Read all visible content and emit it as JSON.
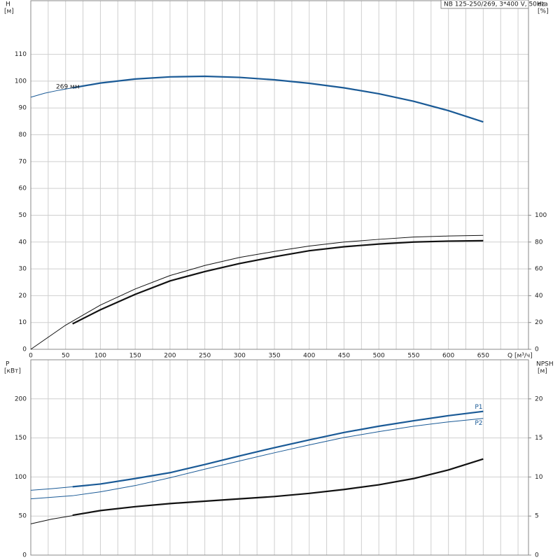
{
  "chart_data": [
    {
      "type": "line",
      "title": "NB 125-250/269, 3*400 V, 50Hz",
      "ylabel": "H",
      "yunit": "[м]",
      "y2label": "eta",
      "y2unit": "[%]",
      "xlabel": "Q [м³/ч]",
      "annotation": "269 мм",
      "xlim": [
        0,
        715
      ],
      "xticks": [
        0,
        50,
        100,
        150,
        200,
        250,
        300,
        350,
        400,
        450,
        500,
        550,
        600,
        650
      ],
      "x_minor_gridlines": [
        25,
        75,
        125,
        175,
        225,
        275,
        325,
        375,
        425,
        475,
        525,
        575,
        625,
        675,
        700
      ],
      "ylim": [
        0,
        130
      ],
      "yticks": [
        0,
        10,
        20,
        30,
        40,
        50,
        60,
        70,
        80,
        90,
        100,
        110
      ],
      "y2lim": [
        0,
        260
      ],
      "y2ticks": [
        0,
        20,
        40,
        60,
        80,
        100
      ],
      "grid": true,
      "series": [
        {
          "color": "#1a5a96",
          "width": "thin",
          "x": [
            0,
            20,
            40,
            60
          ],
          "values": [
            94,
            95.5,
            96.6,
            97.5
          ]
        },
        {
          "color": "#1a5a96",
          "width": "thick",
          "x": [
            60,
            100,
            150,
            200,
            250,
            300,
            350,
            400,
            450,
            500,
            550,
            600,
            650
          ],
          "values": [
            97.5,
            99.3,
            100.8,
            101.6,
            101.8,
            101.4,
            100.5,
            99.2,
            97.5,
            95.3,
            92.5,
            89,
            84.8
          ]
        },
        {
          "color": "#111111",
          "width": "thin",
          "axis": "y2",
          "x": [
            0,
            50,
            100,
            150,
            200,
            250,
            300,
            350,
            400,
            450,
            500,
            550,
            600,
            650
          ],
          "values": [
            0,
            18,
            33,
            45,
            55,
            62.5,
            68.5,
            73,
            77,
            80,
            82,
            83.7,
            84.5,
            85
          ]
        },
        {
          "color": "#111111",
          "width": "thick",
          "axis": "y2",
          "x": [
            60,
            100,
            150,
            200,
            250,
            300,
            350,
            400,
            450,
            500,
            550,
            600,
            650
          ],
          "values": [
            19,
            29.5,
            41,
            51,
            58,
            64,
            69,
            73.5,
            76.5,
            78.5,
            80,
            80.7,
            81
          ]
        }
      ]
    },
    {
      "type": "line",
      "ylabel": "P",
      "yunit": "[кВт]",
      "y2label": "NPSH",
      "y2unit": "[м]",
      "xlim": [
        0,
        715
      ],
      "x_gridlines": [
        0,
        25,
        50,
        75,
        100,
        125,
        150,
        175,
        200,
        225,
        250,
        275,
        300,
        325,
        350,
        375,
        400,
        425,
        450,
        475,
        500,
        525,
        550,
        575,
        600,
        625,
        650,
        675,
        700
      ],
      "ylim": [
        0,
        250
      ],
      "yticks": [
        0,
        50,
        100,
        150,
        200
      ],
      "y2lim": [
        0,
        25
      ],
      "y2ticks": [
        0,
        5,
        10,
        15,
        20
      ],
      "grid": true,
      "series": [
        {
          "color": "#1a5a96",
          "width": "thin",
          "x": [
            0,
            30,
            60
          ],
          "values": [
            83,
            85,
            87.5
          ]
        },
        {
          "name": "P1",
          "color": "#1a5a96",
          "width": "thick",
          "x": [
            60,
            100,
            150,
            200,
            250,
            300,
            350,
            400,
            450,
            500,
            550,
            600,
            650
          ],
          "values": [
            87.5,
            91,
            98,
            105.5,
            116,
            127,
            137.5,
            147.5,
            157,
            165,
            172,
            178.5,
            184
          ]
        },
        {
          "name": "P2",
          "color": "#1a5a96",
          "width": "thin",
          "x": [
            0,
            60,
            100,
            150,
            200,
            250,
            300,
            350,
            400,
            450,
            500,
            550,
            600,
            650
          ],
          "values": [
            72,
            76,
            81,
            89,
            99,
            110,
            120.5,
            131,
            141,
            150.5,
            158,
            165,
            170.5,
            175
          ]
        },
        {
          "color": "#111111",
          "width": "thin",
          "axis": "y2",
          "x": [
            0,
            30,
            60
          ],
          "values": [
            4.0,
            4.6,
            5.05
          ]
        },
        {
          "color": "#111111",
          "width": "thick",
          "axis": "y2",
          "x": [
            60,
            100,
            150,
            200,
            250,
            300,
            350,
            400,
            450,
            500,
            550,
            600,
            650
          ],
          "values": [
            5.1,
            5.7,
            6.2,
            6.6,
            6.9,
            7.2,
            7.5,
            7.9,
            8.4,
            9.0,
            9.8,
            10.9,
            12.3
          ]
        }
      ]
    }
  ]
}
